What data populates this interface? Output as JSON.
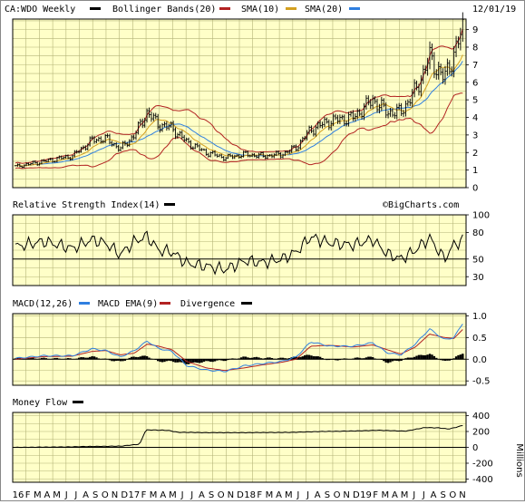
{
  "chart_data": [
    {
      "type": "ohlc",
      "panel": "price",
      "title": "CA:WDO Weekly",
      "date_label": "12/01/19",
      "legend": [
        {
          "name": "Bollinger Bands(20)",
          "color": "#000000"
        },
        {
          "name": "SMA(10)",
          "color": "#b22222"
        },
        {
          "name": "SMA(20)",
          "color": "#2060d0"
        }
      ],
      "legend_swatch_colors": {
        "bollinger": "#b22222",
        "sma10": "#d4a020",
        "sma20": "#2f7fe0"
      },
      "yticks": [
        0,
        1,
        2,
        3,
        4,
        5,
        6,
        7,
        8,
        9
      ],
      "ylim": [
        0,
        9.6
      ],
      "x_start": "2016-01-01",
      "x_end": "2019-12-01",
      "close_keypoints": [
        [
          "2016-01-01",
          1.2
        ],
        [
          "2016-04-01",
          1.5
        ],
        [
          "2016-07-01",
          1.8
        ],
        [
          "2016-09-01",
          2.7
        ],
        [
          "2016-10-15",
          2.8
        ],
        [
          "2016-12-01",
          2.2
        ],
        [
          "2017-01-15",
          3.0
        ],
        [
          "2017-02-25",
          4.3
        ],
        [
          "2017-04-01",
          3.6
        ],
        [
          "2017-05-15",
          3.4
        ],
        [
          "2017-07-01",
          2.6
        ],
        [
          "2017-09-01",
          2.0
        ],
        [
          "2017-11-01",
          1.7
        ],
        [
          "2018-01-01",
          1.9
        ],
        [
          "2018-03-01",
          1.8
        ],
        [
          "2018-05-01",
          1.9
        ],
        [
          "2018-06-15",
          2.3
        ],
        [
          "2018-08-01",
          3.3
        ],
        [
          "2018-10-01",
          3.8
        ],
        [
          "2018-12-15",
          4.0
        ],
        [
          "2019-02-15",
          5.0
        ],
        [
          "2019-04-01",
          4.3
        ],
        [
          "2019-05-15",
          4.3
        ],
        [
          "2019-07-01",
          5.5
        ],
        [
          "2019-08-15",
          7.4
        ],
        [
          "2019-10-01",
          6.2
        ],
        [
          "2019-11-01",
          7.6
        ],
        [
          "2019-12-01",
          9.1
        ]
      ],
      "watermark": "©BigCharts.com"
    },
    {
      "type": "line",
      "panel": "rsi",
      "title": "Relative Strength Index(14)",
      "legend_color": "#000000",
      "yticks": [
        30,
        50,
        80,
        100
      ],
      "ylim": [
        20,
        100
      ],
      "reference_line": 50,
      "keypoints": [
        [
          "2016-01-01",
          64
        ],
        [
          "2016-04-01",
          70
        ],
        [
          "2016-07-01",
          62
        ],
        [
          "2016-09-01",
          72
        ],
        [
          "2016-10-15",
          68
        ],
        [
          "2016-12-01",
          55
        ],
        [
          "2017-01-15",
          70
        ],
        [
          "2017-02-25",
          76
        ],
        [
          "2017-04-01",
          60
        ],
        [
          "2017-05-15",
          58
        ],
        [
          "2017-07-01",
          45
        ],
        [
          "2017-09-01",
          42
        ],
        [
          "2017-11-01",
          38
        ],
        [
          "2018-01-01",
          48
        ],
        [
          "2018-03-01",
          46
        ],
        [
          "2018-05-01",
          50
        ],
        [
          "2018-06-15",
          58
        ],
        [
          "2018-08-01",
          75
        ],
        [
          "2018-10-01",
          68
        ],
        [
          "2018-12-15",
          66
        ],
        [
          "2019-02-15",
          72
        ],
        [
          "2019-04-01",
          56
        ],
        [
          "2019-05-15",
          50
        ],
        [
          "2019-07-01",
          60
        ],
        [
          "2019-08-15",
          74
        ],
        [
          "2019-10-01",
          50
        ],
        [
          "2019-11-01",
          66
        ],
        [
          "2019-12-01",
          72
        ]
      ]
    },
    {
      "type": "line",
      "panel": "macd",
      "legend": [
        {
          "name": "MACD(12,26)",
          "color": "#2f7fe0"
        },
        {
          "name": "MACD EMA(9)",
          "color": "#b22222"
        },
        {
          "name": "Divergence",
          "color": "#000000"
        }
      ],
      "yticks": [
        -0.5,
        0.0,
        0.5,
        1.0
      ],
      "ytick_labels": [
        "-0.5",
        "0.0",
        "0.5",
        "1.0"
      ],
      "ylim": [
        -0.6,
        1.05
      ],
      "macd_keypoints": [
        [
          "2016-01-01",
          0.02
        ],
        [
          "2016-04-01",
          0.08
        ],
        [
          "2016-07-01",
          0.08
        ],
        [
          "2016-09-01",
          0.24
        ],
        [
          "2016-10-15",
          0.2
        ],
        [
          "2016-12-01",
          0.05
        ],
        [
          "2017-01-15",
          0.2
        ],
        [
          "2017-02-25",
          0.42
        ],
        [
          "2017-04-01",
          0.25
        ],
        [
          "2017-05-15",
          0.18
        ],
        [
          "2017-07-01",
          -0.15
        ],
        [
          "2017-09-01",
          -0.25
        ],
        [
          "2017-11-01",
          -0.28
        ],
        [
          "2018-01-01",
          -0.15
        ],
        [
          "2018-03-01",
          -0.1
        ],
        [
          "2018-05-01",
          -0.05
        ],
        [
          "2018-06-15",
          0.05
        ],
        [
          "2018-08-01",
          0.4
        ],
        [
          "2018-10-01",
          0.3
        ],
        [
          "2018-12-15",
          0.3
        ],
        [
          "2019-02-15",
          0.38
        ],
        [
          "2019-04-01",
          0.15
        ],
        [
          "2019-05-15",
          0.1
        ],
        [
          "2019-07-01",
          0.35
        ],
        [
          "2019-08-15",
          0.7
        ],
        [
          "2019-10-01",
          0.45
        ],
        [
          "2019-11-01",
          0.5
        ],
        [
          "2019-12-01",
          0.85
        ]
      ],
      "signal_keypoints": [
        [
          "2016-01-01",
          0.0
        ],
        [
          "2016-04-01",
          0.06
        ],
        [
          "2016-07-01",
          0.07
        ],
        [
          "2016-09-01",
          0.18
        ],
        [
          "2016-10-15",
          0.2
        ],
        [
          "2016-12-01",
          0.1
        ],
        [
          "2017-01-15",
          0.14
        ],
        [
          "2017-02-25",
          0.35
        ],
        [
          "2017-04-01",
          0.3
        ],
        [
          "2017-05-15",
          0.22
        ],
        [
          "2017-07-01",
          -0.05
        ],
        [
          "2017-09-01",
          -0.2
        ],
        [
          "2017-11-01",
          -0.26
        ],
        [
          "2018-01-01",
          -0.2
        ],
        [
          "2018-03-01",
          -0.13
        ],
        [
          "2018-05-01",
          -0.07
        ],
        [
          "2018-06-15",
          0.0
        ],
        [
          "2018-08-01",
          0.3
        ],
        [
          "2018-10-01",
          0.32
        ],
        [
          "2018-12-15",
          0.28
        ],
        [
          "2019-02-15",
          0.33
        ],
        [
          "2019-04-01",
          0.22
        ],
        [
          "2019-05-15",
          0.12
        ],
        [
          "2019-07-01",
          0.28
        ],
        [
          "2019-08-15",
          0.58
        ],
        [
          "2019-10-01",
          0.5
        ],
        [
          "2019-11-01",
          0.48
        ],
        [
          "2019-12-01",
          0.7
        ]
      ]
    },
    {
      "type": "line",
      "panel": "money_flow",
      "title": "Money Flow",
      "legend_color": "#000000",
      "unit_label": "Millions",
      "yticks": [
        -400,
        -200,
        0,
        200,
        400
      ],
      "ylim": [
        -440,
        440
      ],
      "keypoints": [
        [
          "2016-01-01",
          0
        ],
        [
          "2016-06-01",
          5
        ],
        [
          "2016-09-01",
          12
        ],
        [
          "2016-12-01",
          15
        ],
        [
          "2017-02-01",
          40
        ],
        [
          "2017-02-20",
          220
        ],
        [
          "2017-05-01",
          215
        ],
        [
          "2017-06-01",
          190
        ],
        [
          "2017-09-01",
          185
        ],
        [
          "2018-01-01",
          185
        ],
        [
          "2018-06-01",
          188
        ],
        [
          "2018-09-01",
          200
        ],
        [
          "2018-12-01",
          205
        ],
        [
          "2019-03-01",
          215
        ],
        [
          "2019-06-01",
          205
        ],
        [
          "2019-08-01",
          250
        ],
        [
          "2019-09-15",
          245
        ],
        [
          "2019-10-15",
          230
        ],
        [
          "2019-11-15",
          260
        ],
        [
          "2019-12-01",
          280
        ]
      ]
    }
  ],
  "x_axis": {
    "tick_labels": [
      "16",
      "F",
      "M",
      "A",
      "M",
      "J",
      "J",
      "A",
      "S",
      "O",
      "N",
      "D",
      "17",
      "F",
      "M",
      "A",
      "M",
      "J",
      "J",
      "A",
      "S",
      "O",
      "N",
      "D",
      "18",
      "F",
      "M",
      "A",
      "M",
      "J",
      "J",
      "A",
      "S",
      "O",
      "N",
      "D",
      "19",
      "F",
      "M",
      "A",
      "M",
      "J",
      "J",
      "A",
      "S",
      "O",
      "N"
    ]
  }
}
